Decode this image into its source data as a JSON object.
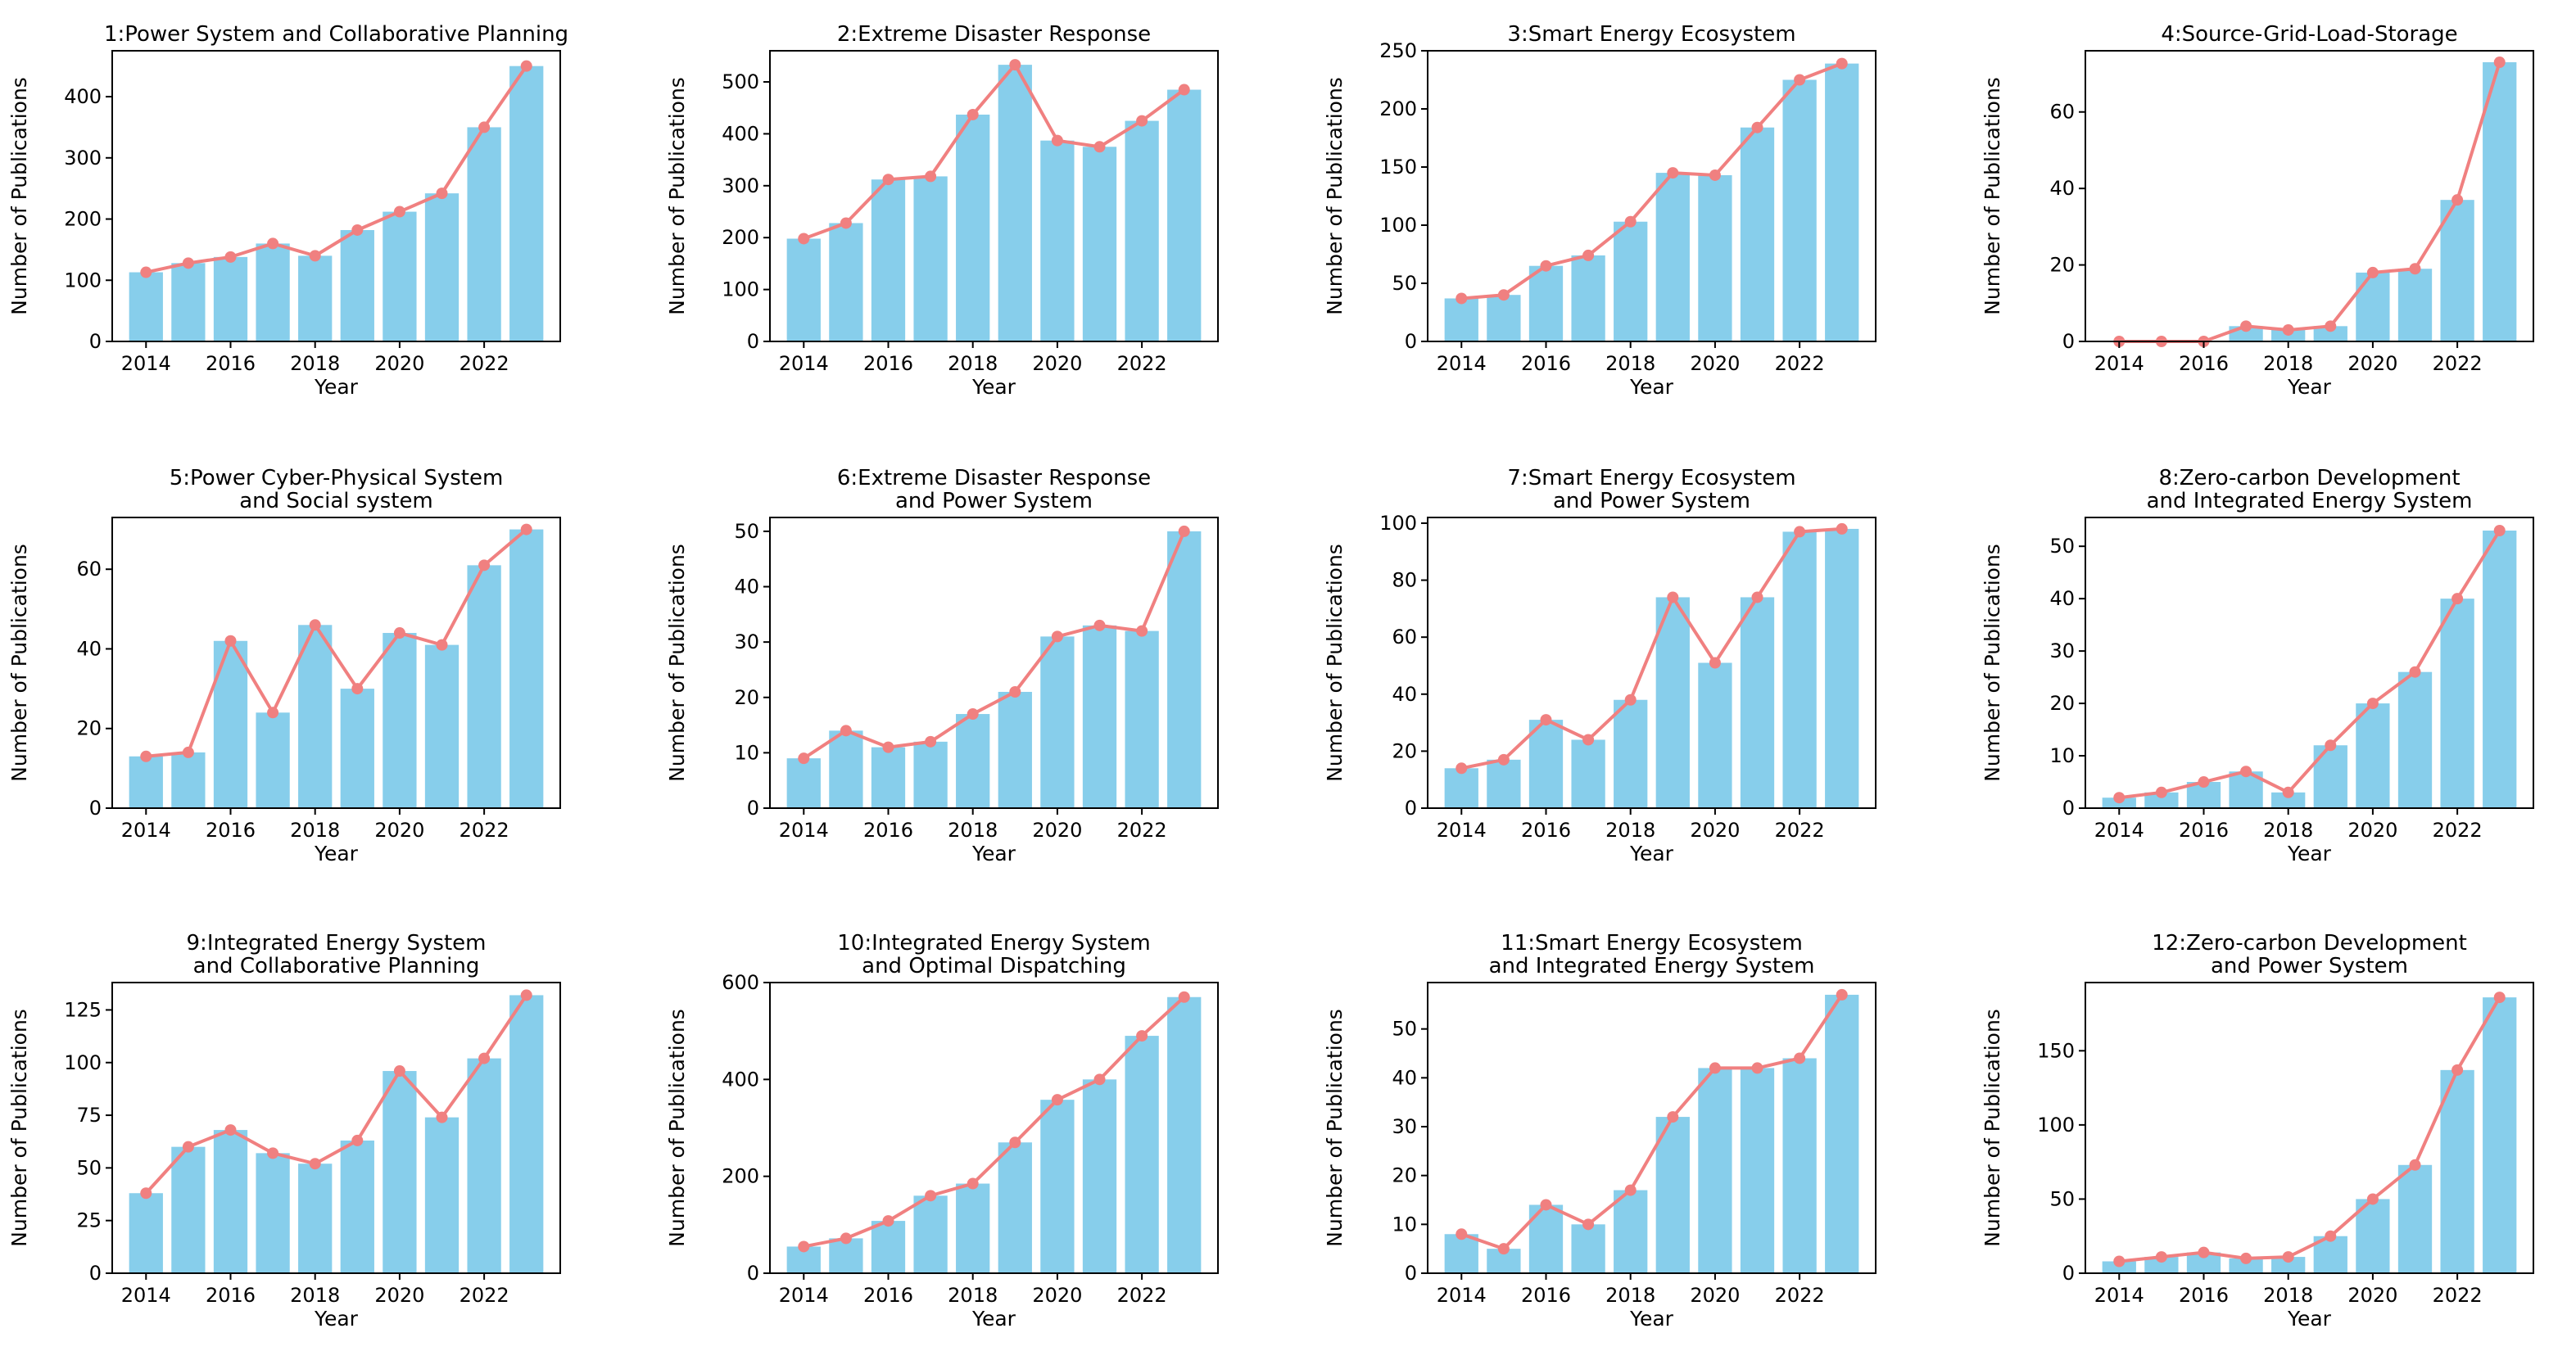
{
  "style": {
    "bar_color": "#87ceeb",
    "line_color": "#f08080",
    "axis_color": "#000000"
  },
  "years": [
    2014,
    2015,
    2016,
    2017,
    2018,
    2019,
    2020,
    2021,
    2022,
    2023
  ],
  "chart_data": [
    {
      "type": "bar",
      "overlay": "line",
      "title": [
        "1:Power System and Collaborative Planning"
      ],
      "xlabel": "Year",
      "ylabel": "Number of Publications",
      "x": [
        2014,
        2015,
        2016,
        2017,
        2018,
        2019,
        2020,
        2021,
        2022,
        2023
      ],
      "values": [
        113,
        128,
        138,
        160,
        140,
        182,
        212,
        242,
        350,
        450
      ],
      "ylim": [
        0,
        475
      ],
      "yticks": [
        0,
        100,
        200,
        300,
        400
      ],
      "xticks": [
        2014,
        2016,
        2018,
        2020,
        2022
      ]
    },
    {
      "type": "bar",
      "overlay": "line",
      "title": [
        "2:Extreme Disaster Response"
      ],
      "xlabel": "Year",
      "ylabel": "Number of Publications",
      "x": [
        2014,
        2015,
        2016,
        2017,
        2018,
        2019,
        2020,
        2021,
        2022,
        2023
      ],
      "values": [
        198,
        228,
        312,
        318,
        437,
        533,
        387,
        375,
        425,
        485
      ],
      "ylim": [
        0,
        560
      ],
      "yticks": [
        0,
        100,
        200,
        300,
        400,
        500
      ],
      "xticks": [
        2014,
        2016,
        2018,
        2020,
        2022
      ]
    },
    {
      "type": "bar",
      "overlay": "line",
      "title": [
        "3:Smart Energy Ecosystem"
      ],
      "xlabel": "Year",
      "ylabel": "Number of Publications",
      "x": [
        2014,
        2015,
        2016,
        2017,
        2018,
        2019,
        2020,
        2021,
        2022,
        2023
      ],
      "values": [
        37,
        40,
        65,
        74,
        103,
        145,
        143,
        184,
        225,
        239
      ],
      "ylim": [
        0,
        250
      ],
      "yticks": [
        0,
        50,
        100,
        150,
        200,
        250
      ],
      "xticks": [
        2014,
        2016,
        2018,
        2020,
        2022
      ]
    },
    {
      "type": "bar",
      "overlay": "line",
      "title": [
        "4:Source-Grid-Load-Storage"
      ],
      "xlabel": "Year",
      "ylabel": "Number of Publications",
      "x": [
        2014,
        2015,
        2016,
        2017,
        2018,
        2019,
        2020,
        2021,
        2022,
        2023
      ],
      "values": [
        0,
        0,
        0,
        4,
        3,
        4,
        18,
        19,
        37,
        73
      ],
      "ylim": [
        0,
        76
      ],
      "yticks": [
        0,
        20,
        40,
        60
      ],
      "xticks": [
        2014,
        2016,
        2018,
        2020,
        2022
      ]
    },
    {
      "type": "bar",
      "overlay": "line",
      "title": [
        "5:Power Cyber-Physical System",
        "and Social system"
      ],
      "xlabel": "Year",
      "ylabel": "Number of Publications",
      "x": [
        2014,
        2015,
        2016,
        2017,
        2018,
        2019,
        2020,
        2021,
        2022,
        2023
      ],
      "values": [
        13,
        14,
        42,
        24,
        46,
        30,
        44,
        41,
        61,
        70
      ],
      "ylim": [
        0,
        73
      ],
      "yticks": [
        0,
        20,
        40,
        60
      ],
      "xticks": [
        2014,
        2016,
        2018,
        2020,
        2022
      ]
    },
    {
      "type": "bar",
      "overlay": "line",
      "title": [
        "6:Extreme Disaster Response",
        "and Power System"
      ],
      "xlabel": "Year",
      "ylabel": "Number of Publications",
      "x": [
        2014,
        2015,
        2016,
        2017,
        2018,
        2019,
        2020,
        2021,
        2022,
        2023
      ],
      "values": [
        9,
        14,
        11,
        12,
        17,
        21,
        31,
        33,
        32,
        50
      ],
      "ylim": [
        0,
        52.5
      ],
      "yticks": [
        0,
        10,
        20,
        30,
        40,
        50
      ],
      "xticks": [
        2014,
        2016,
        2018,
        2020,
        2022
      ]
    },
    {
      "type": "bar",
      "overlay": "line",
      "title": [
        "7:Smart Energy Ecosystem",
        "and Power System"
      ],
      "xlabel": "Year",
      "ylabel": "Number of Publications",
      "x": [
        2014,
        2015,
        2016,
        2017,
        2018,
        2019,
        2020,
        2021,
        2022,
        2023
      ],
      "values": [
        14,
        17,
        31,
        24,
        38,
        74,
        51,
        74,
        97,
        98
      ],
      "ylim": [
        0,
        102
      ],
      "yticks": [
        0,
        20,
        40,
        60,
        80,
        100
      ],
      "xticks": [
        2014,
        2016,
        2018,
        2020,
        2022
      ]
    },
    {
      "type": "bar",
      "overlay": "line",
      "title": [
        "8:Zero-carbon Development",
        "and Integrated Energy System"
      ],
      "xlabel": "Year",
      "ylabel": "Number of Publications",
      "x": [
        2014,
        2015,
        2016,
        2017,
        2018,
        2019,
        2020,
        2021,
        2022,
        2023
      ],
      "values": [
        2,
        3,
        5,
        7,
        3,
        12,
        20,
        26,
        40,
        53
      ],
      "ylim": [
        0,
        55.5
      ],
      "yticks": [
        0,
        10,
        20,
        30,
        40,
        50
      ],
      "xticks": [
        2014,
        2016,
        2018,
        2020,
        2022
      ]
    },
    {
      "type": "bar",
      "overlay": "line",
      "title": [
        "9:Integrated Energy System",
        "and Collaborative Planning"
      ],
      "xlabel": "Year",
      "ylabel": "Number of Publications",
      "x": [
        2014,
        2015,
        2016,
        2017,
        2018,
        2019,
        2020,
        2021,
        2022,
        2023
      ],
      "values": [
        38,
        60,
        68,
        57,
        52,
        63,
        96,
        74,
        102,
        132
      ],
      "ylim": [
        0,
        138
      ],
      "yticks": [
        0,
        25,
        50,
        75,
        100,
        125
      ],
      "xticks": [
        2014,
        2016,
        2018,
        2020,
        2022
      ]
    },
    {
      "type": "bar",
      "overlay": "line",
      "title": [
        "10:Integrated Energy System",
        "and Optimal Dispatching"
      ],
      "xlabel": "Year",
      "ylabel": "Number of Publications",
      "x": [
        2014,
        2015,
        2016,
        2017,
        2018,
        2019,
        2020,
        2021,
        2022,
        2023
      ],
      "values": [
        55,
        72,
        108,
        160,
        185,
        270,
        358,
        400,
        490,
        570
      ],
      "ylim": [
        0,
        600
      ],
      "yticks": [
        0,
        200,
        400,
        600
      ],
      "xticks": [
        2014,
        2016,
        2018,
        2020,
        2022
      ]
    },
    {
      "type": "bar",
      "overlay": "line",
      "title": [
        "11:Smart Energy Ecosystem",
        "and Integrated Energy System"
      ],
      "xlabel": "Year",
      "ylabel": "Number of Publications",
      "x": [
        2014,
        2015,
        2016,
        2017,
        2018,
        2019,
        2020,
        2021,
        2022,
        2023
      ],
      "values": [
        8,
        5,
        14,
        10,
        17,
        32,
        42,
        42,
        44,
        57
      ],
      "ylim": [
        0,
        59.5
      ],
      "yticks": [
        0,
        10,
        20,
        30,
        40,
        50
      ],
      "xticks": [
        2014,
        2016,
        2018,
        2020,
        2022
      ]
    },
    {
      "type": "bar",
      "overlay": "line",
      "title": [
        "12:Zero-carbon Development",
        "and Power System"
      ],
      "xlabel": "Year",
      "ylabel": "Number of Publications",
      "x": [
        2014,
        2015,
        2016,
        2017,
        2018,
        2019,
        2020,
        2021,
        2022,
        2023
      ],
      "values": [
        8,
        11,
        14,
        10,
        11,
        25,
        50,
        73,
        137,
        186
      ],
      "ylim": [
        0,
        196
      ],
      "yticks": [
        0,
        50,
        100,
        150
      ],
      "xticks": [
        2014,
        2016,
        2018,
        2020,
        2022
      ]
    }
  ]
}
